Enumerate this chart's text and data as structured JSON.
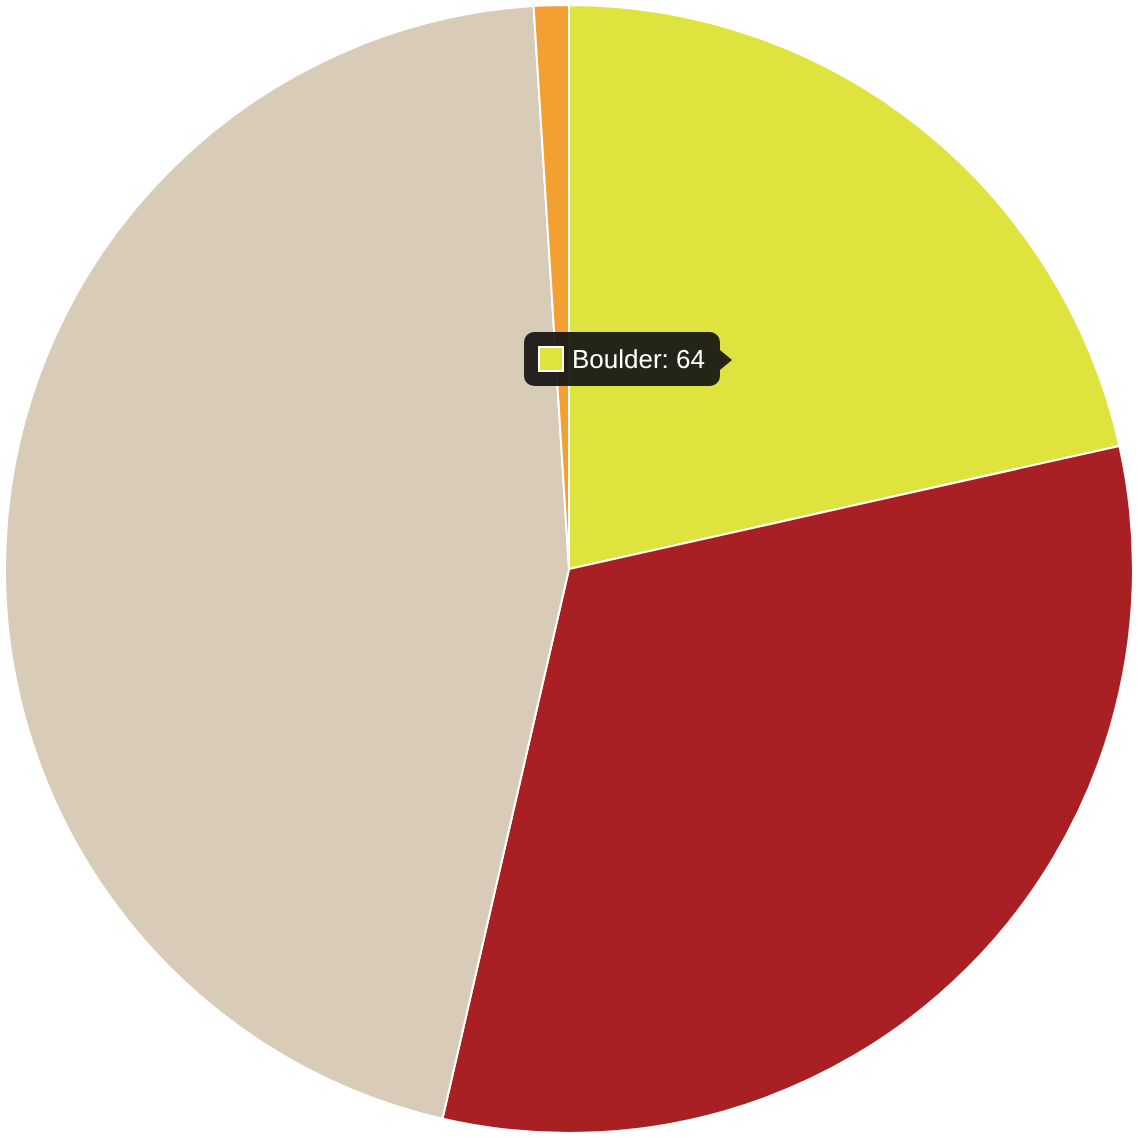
{
  "chart_data": {
    "type": "pie",
    "categories": [
      null,
      null,
      null,
      null
    ],
    "values": [
      21.5,
      32.1,
      45.4,
      1.0
    ],
    "colors": [
      "#dfe33d",
      "#a82023",
      "#d8cbb8",
      "#f4a030"
    ],
    "annotations": [
      "Boulder: 64"
    ]
  }
}
